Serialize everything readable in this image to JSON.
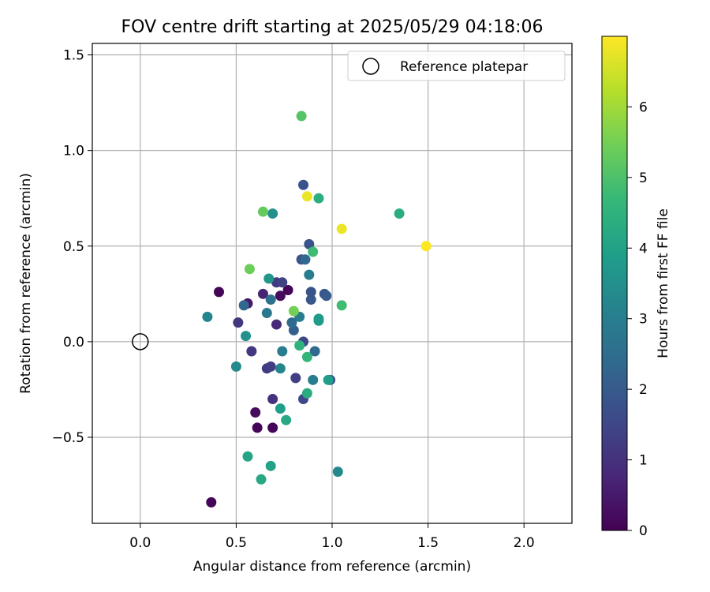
{
  "chart_data": {
    "type": "scatter",
    "title": "FOV centre drift starting at 2025/05/29 04:18:06",
    "xlabel": "Angular distance from reference (arcmin)",
    "ylabel": "Rotation from reference (arcmin)",
    "xlim": [
      -0.25,
      2.25
    ],
    "ylim": [
      -0.95,
      1.56
    ],
    "xticks": [
      0.0,
      0.5,
      1.0,
      1.5,
      2.0
    ],
    "xtick_labels": [
      "0.0",
      "0.5",
      "1.0",
      "1.5",
      "2.0"
    ],
    "yticks": [
      -0.5,
      0.0,
      0.5,
      1.0,
      1.5
    ],
    "ytick_labels": [
      "−0.5",
      "0.0",
      "0.5",
      "1.0",
      "1.5"
    ],
    "grid": true,
    "legend": {
      "position": "top-right",
      "entries": [
        "Reference platepar"
      ]
    },
    "reference_point": {
      "x": 0.0,
      "y": 0.0,
      "color": "#000000"
    },
    "colorbar": {
      "label": "Hours from first FF file",
      "range": [
        0,
        7
      ],
      "ticks": [
        0,
        1,
        2,
        3,
        4,
        5,
        6
      ],
      "tick_labels": [
        "0",
        "1",
        "2",
        "3",
        "4",
        "5",
        "6"
      ],
      "colormap": [
        "#440154",
        "#482878",
        "#3e4989",
        "#31688e",
        "#26828e",
        "#1f9e89",
        "#35b779",
        "#6ece58",
        "#b5de2b",
        "#fde725"
      ]
    },
    "points": [
      {
        "x": 0.37,
        "y": -0.84,
        "t": 0.1
      },
      {
        "x": 0.61,
        "y": -0.45,
        "t": 0.1
      },
      {
        "x": 0.69,
        "y": -0.45,
        "t": 0.1
      },
      {
        "x": 0.6,
        "y": -0.37,
        "t": 0.2
      },
      {
        "x": 0.41,
        "y": 0.26,
        "t": 0.1
      },
      {
        "x": 0.77,
        "y": 0.27,
        "t": 0.1
      },
      {
        "x": 0.73,
        "y": 0.24,
        "t": 0.2
      },
      {
        "x": 0.56,
        "y": 0.2,
        "t": 0.5
      },
      {
        "x": 0.64,
        "y": 0.25,
        "t": 0.7
      },
      {
        "x": 0.71,
        "y": 0.09,
        "t": 0.8
      },
      {
        "x": 0.69,
        "y": -0.3,
        "t": 1.0
      },
      {
        "x": 0.51,
        "y": 0.1,
        "t": 1.1
      },
      {
        "x": 0.58,
        "y": -0.05,
        "t": 1.1
      },
      {
        "x": 0.66,
        "y": -0.14,
        "t": 1.2
      },
      {
        "x": 0.68,
        "y": -0.13,
        "t": 1.3
      },
      {
        "x": 0.81,
        "y": -0.19,
        "t": 1.3
      },
      {
        "x": 0.71,
        "y": 0.31,
        "t": 1.2
      },
      {
        "x": 0.74,
        "y": 0.31,
        "t": 1.4
      },
      {
        "x": 0.85,
        "y": 0.0,
        "t": 1.5
      },
      {
        "x": 0.85,
        "y": -0.3,
        "t": 1.5
      },
      {
        "x": 0.99,
        "y": -0.2,
        "t": 1.6
      },
      {
        "x": 0.84,
        "y": 0.43,
        "t": 1.8
      },
      {
        "x": 0.88,
        "y": 0.51,
        "t": 1.8
      },
      {
        "x": 0.85,
        "y": 0.82,
        "t": 1.8
      },
      {
        "x": 0.89,
        "y": 0.26,
        "t": 1.8
      },
      {
        "x": 0.89,
        "y": 0.22,
        "t": 1.9
      },
      {
        "x": 0.96,
        "y": 0.25,
        "t": 1.9
      },
      {
        "x": 0.97,
        "y": 0.24,
        "t": 2.0
      },
      {
        "x": 0.8,
        "y": 0.06,
        "t": 2.1
      },
      {
        "x": 0.54,
        "y": 0.19,
        "t": 2.3
      },
      {
        "x": 0.79,
        "y": 0.1,
        "t": 2.4
      },
      {
        "x": 0.86,
        "y": 0.43,
        "t": 2.4
      },
      {
        "x": 0.91,
        "y": -0.05,
        "t": 2.4
      },
      {
        "x": 0.68,
        "y": 0.22,
        "t": 2.6
      },
      {
        "x": 0.66,
        "y": 0.15,
        "t": 2.8
      },
      {
        "x": 0.83,
        "y": 0.13,
        "t": 2.9
      },
      {
        "x": 0.88,
        "y": 0.35,
        "t": 2.9
      },
      {
        "x": 0.9,
        "y": -0.2,
        "t": 3.0
      },
      {
        "x": 0.74,
        "y": -0.05,
        "t": 3.0
      },
      {
        "x": 0.35,
        "y": 0.13,
        "t": 3.2
      },
      {
        "x": 0.73,
        "y": -0.14,
        "t": 3.2
      },
      {
        "x": 0.5,
        "y": -0.13,
        "t": 3.3
      },
      {
        "x": 1.03,
        "y": -0.68,
        "t": 3.3
      },
      {
        "x": 0.55,
        "y": 0.03,
        "t": 3.5
      },
      {
        "x": 0.69,
        "y": 0.67,
        "t": 3.5
      },
      {
        "x": 0.67,
        "y": 0.33,
        "t": 3.7
      },
      {
        "x": 0.93,
        "y": 0.12,
        "t": 3.8
      },
      {
        "x": 0.93,
        "y": 0.11,
        "t": 3.8
      },
      {
        "x": 0.98,
        "y": -0.2,
        "t": 3.9
      },
      {
        "x": 0.73,
        "y": -0.35,
        "t": 3.9
      },
      {
        "x": 0.68,
        "y": -0.65,
        "t": 4.0
      },
      {
        "x": 0.56,
        "y": -0.6,
        "t": 4.1
      },
      {
        "x": 0.63,
        "y": -0.72,
        "t": 4.2
      },
      {
        "x": 0.76,
        "y": -0.41,
        "t": 4.2
      },
      {
        "x": 1.35,
        "y": 0.67,
        "t": 4.3
      },
      {
        "x": 0.87,
        "y": -0.27,
        "t": 4.3
      },
      {
        "x": 0.93,
        "y": 0.75,
        "t": 4.4
      },
      {
        "x": 0.83,
        "y": -0.02,
        "t": 4.5
      },
      {
        "x": 0.87,
        "y": -0.08,
        "t": 4.6
      },
      {
        "x": 0.9,
        "y": 0.47,
        "t": 4.8
      },
      {
        "x": 1.05,
        "y": 0.19,
        "t": 4.8
      },
      {
        "x": 0.84,
        "y": 1.18,
        "t": 5.1
      },
      {
        "x": 0.64,
        "y": 0.68,
        "t": 5.3
      },
      {
        "x": 0.57,
        "y": 0.38,
        "t": 5.4
      },
      {
        "x": 0.8,
        "y": 0.16,
        "t": 5.5
      },
      {
        "x": 0.87,
        "y": 0.76,
        "t": 6.8
      },
      {
        "x": 1.05,
        "y": 0.59,
        "t": 6.8
      },
      {
        "x": 1.49,
        "y": 0.5,
        "t": 7.0
      }
    ]
  }
}
